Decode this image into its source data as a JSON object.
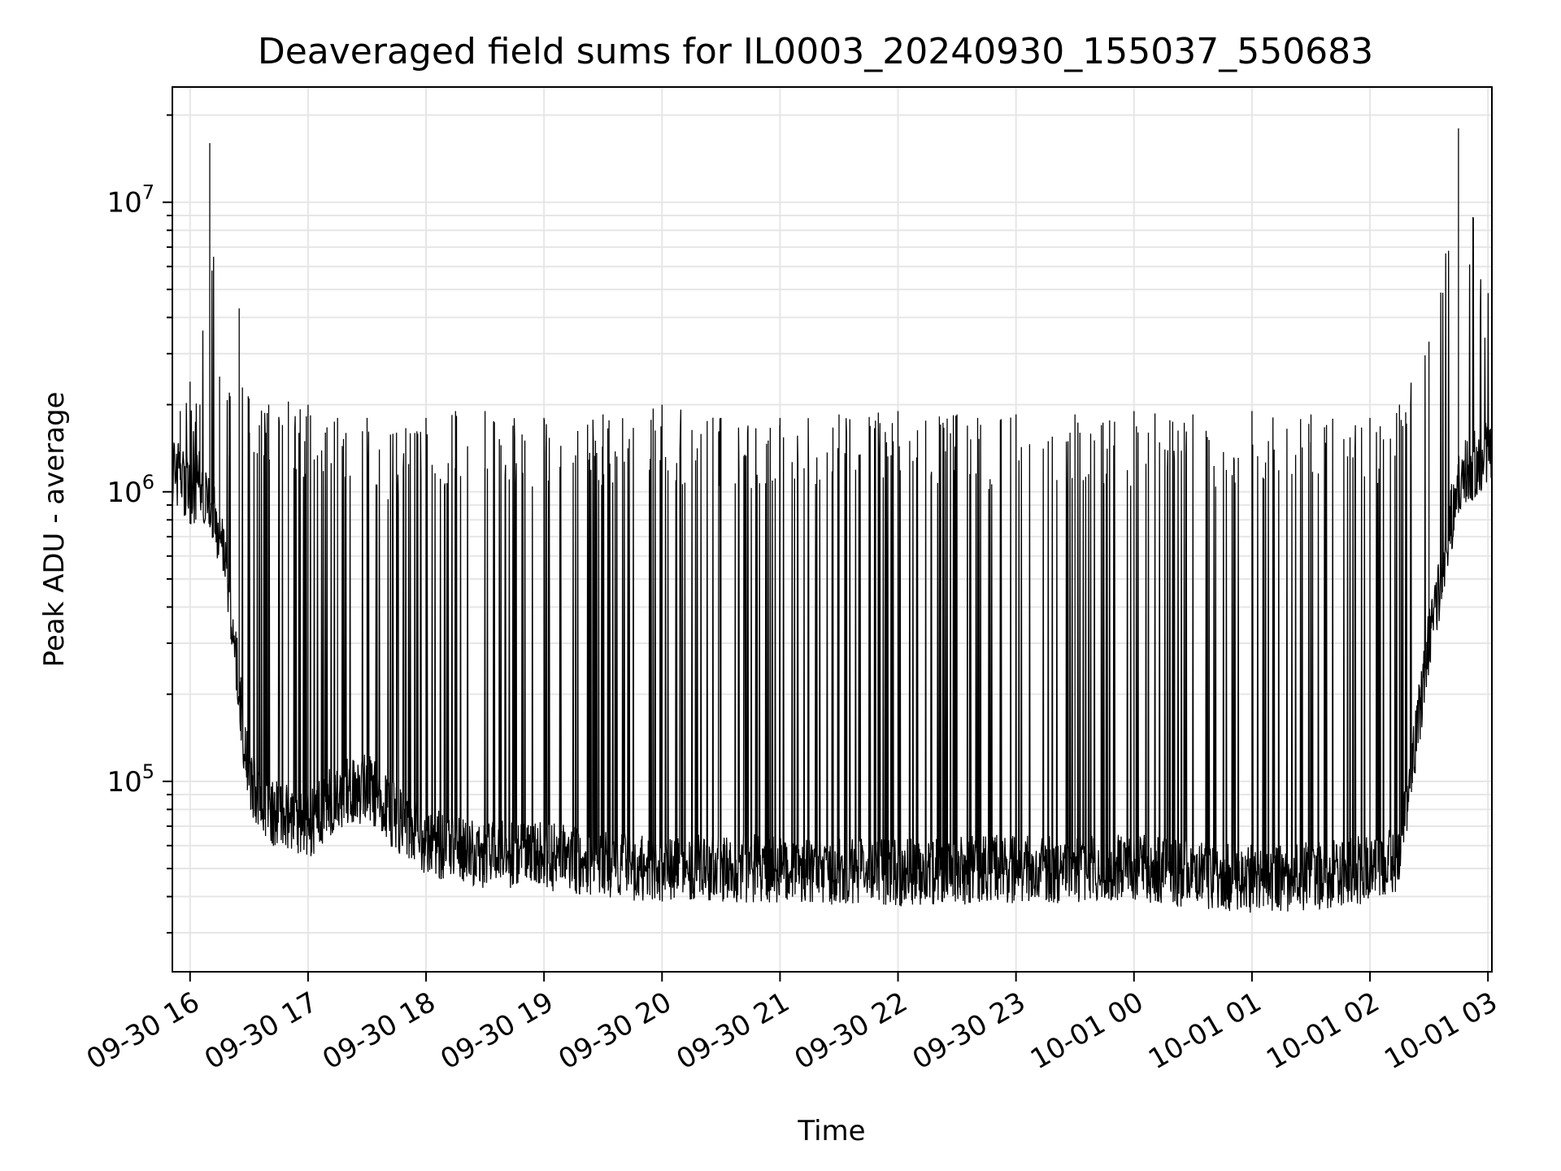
{
  "colors": {
    "background": "#ffffff",
    "line": "#000000",
    "grid": "#e6e6e6",
    "axes": "#000000"
  },
  "chart_data": {
    "type": "line",
    "title": "Deaveraged field sums for IL0003_20240930_155037_550683",
    "xlabel": "Time",
    "ylabel": "Peak ADU - average",
    "yscale": "log",
    "grid": true,
    "xlim": [
      "2024-09-30 15:51",
      "2024-10-01 03:02"
    ],
    "ylim": [
      22000,
      25000000
    ],
    "x_tick_labels": [
      "09-30 16",
      "09-30 17",
      "09-30 18",
      "09-30 19",
      "09-30 20",
      "09-30 21",
      "09-30 22",
      "09-30 23",
      "10-01 00",
      "10-01 01",
      "10-01 02",
      "10-01 03"
    ],
    "x_tick_times": [
      "2024-09-30 16:00",
      "2024-09-30 17:00",
      "2024-09-30 18:00",
      "2024-09-30 19:00",
      "2024-09-30 20:00",
      "2024-09-30 21:00",
      "2024-09-30 22:00",
      "2024-09-30 23:00",
      "2024-10-01 00:00",
      "2024-10-01 01:00",
      "2024-10-01 02:00",
      "2024-10-01 03:00"
    ],
    "y_tick_labels": [
      {
        "base": "10",
        "exp": "5",
        "value": 100000
      },
      {
        "base": "10",
        "exp": "6",
        "value": 1000000
      },
      {
        "base": "10",
        "exp": "7",
        "value": 10000000
      }
    ],
    "series": [
      {
        "style": "thin-black-line",
        "envelope_note": "dense trace; baseline and spike envelope",
        "x": [
          "2024-09-30 15:51",
          "2024-09-30 15:55",
          "2024-09-30 16:00",
          "2024-09-30 16:05",
          "2024-09-30 16:10",
          "2024-09-30 16:15",
          "2024-09-30 16:20",
          "2024-09-30 16:25",
          "2024-09-30 16:30",
          "2024-09-30 16:40",
          "2024-09-30 16:50",
          "2024-09-30 17:00",
          "2024-09-30 17:15",
          "2024-09-30 17:30",
          "2024-09-30 17:45",
          "2024-09-30 18:00",
          "2024-09-30 18:15",
          "2024-09-30 18:30",
          "2024-09-30 19:00",
          "2024-09-30 19:30",
          "2024-09-30 20:00",
          "2024-09-30 20:30",
          "2024-09-30 21:00",
          "2024-09-30 21:30",
          "2024-09-30 22:00",
          "2024-09-30 22:30",
          "2024-09-30 23:00",
          "2024-09-30 23:30",
          "2024-10-01 00:00",
          "2024-10-01 00:30",
          "2024-10-01 01:00",
          "2024-10-01 01:30",
          "2024-10-01 02:00",
          "2024-10-01 02:15",
          "2024-10-01 02:30",
          "2024-10-01 02:45",
          "2024-10-01 03:02"
        ],
        "baseline": [
          1200000,
          1100000,
          1000000,
          1050000,
          900000,
          700000,
          450000,
          200000,
          100000,
          80000,
          75000,
          70000,
          90000,
          95000,
          75000,
          62000,
          58000,
          56000,
          55000,
          52000,
          50000,
          50000,
          50000,
          49000,
          48000,
          49000,
          50000,
          49000,
          50000,
          48000,
          46000,
          47000,
          50000,
          55000,
          300000,
          1100000,
          1400000
        ],
        "spikes": [
          1800000,
          1900000,
          2400000,
          2000000,
          16000000,
          2500000,
          2200000,
          4300000,
          2100000,
          2000000,
          2050000,
          2000000,
          1800000,
          1800000,
          1600000,
          1800000,
          1900000,
          1900000,
          1800000,
          1850000,
          2000000,
          1800000,
          1800000,
          1850000,
          1900000,
          1850000,
          1850000,
          1850000,
          1900000,
          1850000,
          1900000,
          1850000,
          1800000,
          2000000,
          3300000,
          18000000,
          4200000
        ]
      }
    ]
  }
}
